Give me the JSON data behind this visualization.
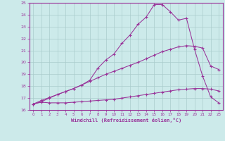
{
  "bg_color": "#cceaea",
  "grid_color": "#aacccc",
  "line_color": "#993399",
  "xlabel": "Windchill (Refroidissement éolien,°C)",
  "xlim_min": 0,
  "xlim_max": 23,
  "ylim_min": 16,
  "ylim_max": 25,
  "xticks": [
    0,
    1,
    2,
    3,
    4,
    5,
    6,
    7,
    8,
    9,
    10,
    11,
    12,
    13,
    14,
    15,
    16,
    17,
    18,
    19,
    20,
    21,
    22,
    23
  ],
  "yticks": [
    16,
    17,
    18,
    19,
    20,
    21,
    22,
    23,
    24,
    25
  ],
  "line1_x": [
    0,
    1,
    2,
    3,
    4,
    5,
    6,
    7,
    8,
    9,
    10,
    11,
    12,
    13,
    14,
    15,
    16,
    17,
    18,
    19,
    20,
    21,
    22,
    23
  ],
  "line1_y": [
    16.5,
    16.65,
    16.6,
    16.6,
    16.6,
    16.65,
    16.7,
    16.75,
    16.8,
    16.85,
    16.9,
    17.0,
    17.1,
    17.2,
    17.3,
    17.4,
    17.5,
    17.6,
    17.7,
    17.75,
    17.8,
    17.8,
    17.75,
    17.6
  ],
  "line2_x": [
    0,
    1,
    2,
    3,
    4,
    5,
    6,
    7,
    8,
    9,
    10,
    11,
    12,
    13,
    14,
    15,
    16,
    17,
    18,
    19,
    20,
    21,
    22,
    23
  ],
  "line2_y": [
    16.5,
    16.7,
    17.0,
    17.3,
    17.55,
    17.8,
    18.1,
    18.4,
    18.7,
    19.0,
    19.25,
    19.5,
    19.75,
    20.0,
    20.3,
    20.6,
    20.9,
    21.1,
    21.3,
    21.4,
    21.35,
    21.2,
    19.7,
    19.4
  ],
  "line3_x": [
    0,
    1,
    2,
    3,
    4,
    5,
    6,
    7,
    8,
    9,
    10,
    11,
    12,
    13,
    14,
    15,
    16,
    17,
    18,
    19,
    20,
    21,
    22,
    23
  ],
  "line3_y": [
    16.5,
    16.8,
    17.05,
    17.3,
    17.55,
    17.8,
    18.1,
    18.5,
    19.5,
    20.2,
    20.7,
    21.6,
    22.3,
    23.2,
    23.8,
    24.85,
    24.85,
    24.25,
    23.55,
    23.7,
    21.1,
    18.85,
    17.1,
    16.6
  ]
}
